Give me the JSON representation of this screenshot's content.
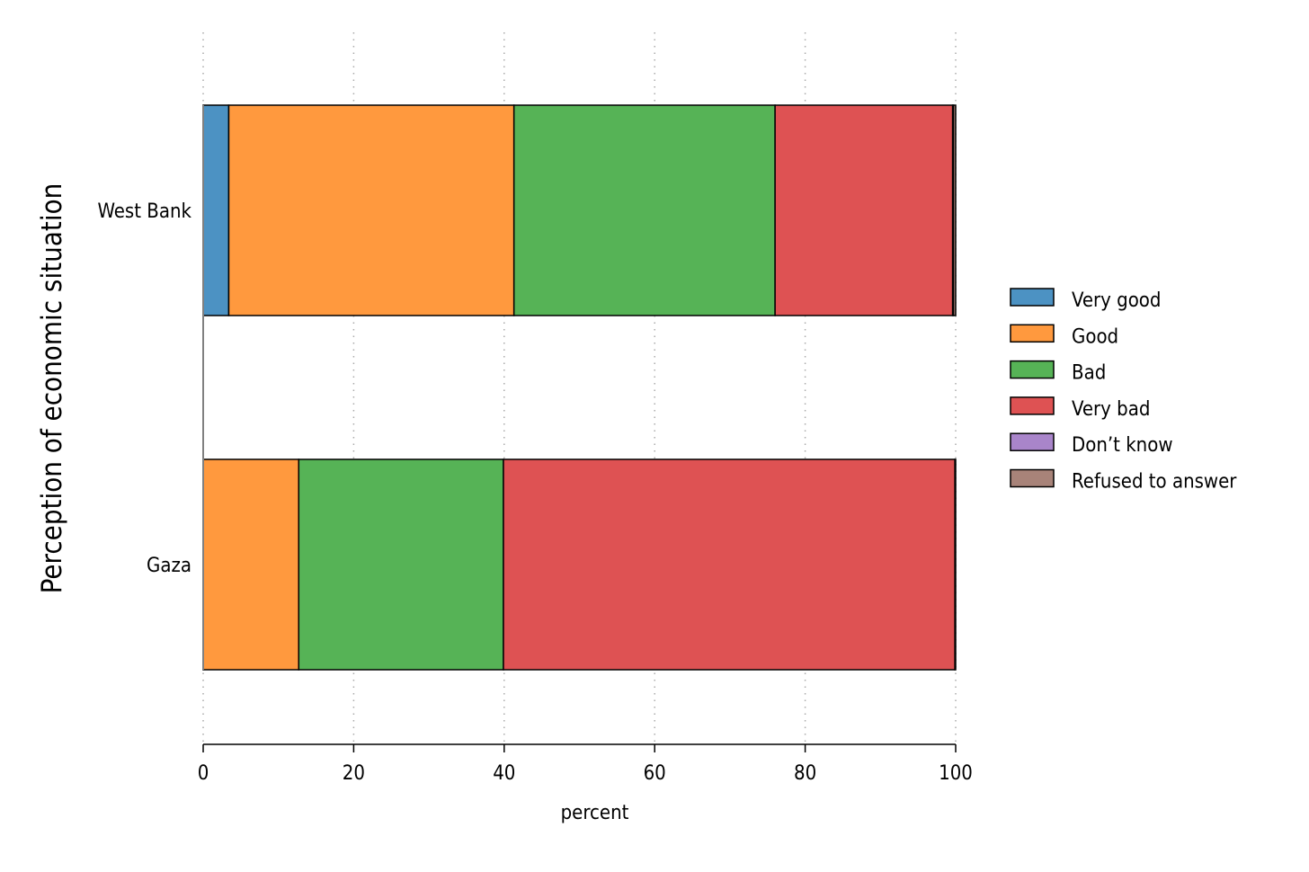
{
  "chart_data": {
    "type": "bar",
    "orientation": "horizontal",
    "stacked": true,
    "categories": [
      "West Bank",
      "Gaza"
    ],
    "series": [
      {
        "name": "Very good",
        "color": "#4c92c3",
        "values": [
          3.4,
          0.0
        ]
      },
      {
        "name": "Good",
        "color": "#ff993e",
        "values": [
          37.9,
          12.7
        ]
      },
      {
        "name": "Bad",
        "color": "#56b356",
        "values": [
          34.7,
          27.2
        ]
      },
      {
        "name": "Very bad",
        "color": "#de5253",
        "values": [
          23.6,
          60.0
        ]
      },
      {
        "name": "Don’t know",
        "color": "#a985ca",
        "values": [
          0.1,
          0.0
        ]
      },
      {
        "name": "Refused to answer",
        "color": "#a88379",
        "values": [
          0.3,
          0.1
        ]
      }
    ],
    "xlabel": "percent",
    "ylabel": "Perception of economic situation",
    "xlim": [
      0,
      100
    ],
    "xticks": [
      0,
      20,
      40,
      60,
      80,
      100
    ],
    "grid": "vertical dotted",
    "legend": "right"
  }
}
